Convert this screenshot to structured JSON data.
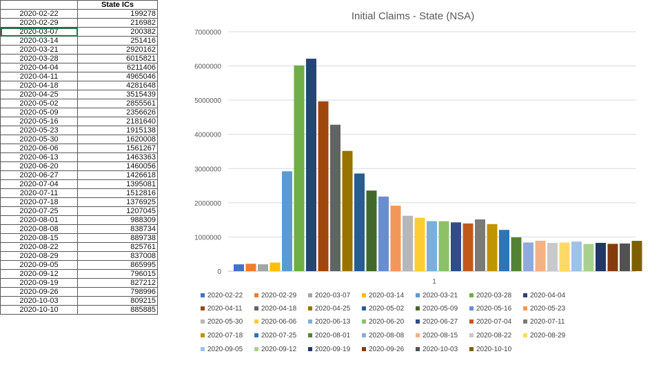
{
  "table": {
    "header": [
      "",
      "State ICs"
    ],
    "rows": [
      [
        "2020-02-22",
        "199278"
      ],
      [
        "2020-02-29",
        "216982"
      ],
      [
        "2020-03-07",
        "200382"
      ],
      [
        "2020-03-14",
        "251416"
      ],
      [
        "2020-03-21",
        "2920162"
      ],
      [
        "2020-03-28",
        "6015821"
      ],
      [
        "2020-04-04",
        "6211406"
      ],
      [
        "2020-04-11",
        "4965046"
      ],
      [
        "2020-04-18",
        "4281648"
      ],
      [
        "2020-04-25",
        "3515439"
      ],
      [
        "2020-05-02",
        "2855561"
      ],
      [
        "2020-05-09",
        "2356626"
      ],
      [
        "2020-05-16",
        "2181640"
      ],
      [
        "2020-05-23",
        "1915138"
      ],
      [
        "2020-05-30",
        "1620008"
      ],
      [
        "2020-06-06",
        "1561267"
      ],
      [
        "2020-06-13",
        "1463363"
      ],
      [
        "2020-06-20",
        "1460056"
      ],
      [
        "2020-06-27",
        "1426618"
      ],
      [
        "2020-07-04",
        "1395081"
      ],
      [
        "2020-07-11",
        "1512816"
      ],
      [
        "2020-07-18",
        "1376925"
      ],
      [
        "2020-07-25",
        "1207045"
      ],
      [
        "2020-08-01",
        "988309"
      ],
      [
        "2020-08-08",
        "838734"
      ],
      [
        "2020-08-15",
        "889738"
      ],
      [
        "2020-08-22",
        "825761"
      ],
      [
        "2020-08-29",
        "837008"
      ],
      [
        "2020-09-05",
        "865995"
      ],
      [
        "2020-09-12",
        "796015"
      ],
      [
        "2020-09-19",
        "827212"
      ],
      [
        "2020-09-26",
        "798996"
      ],
      [
        "2020-10-03",
        "809215"
      ],
      [
        "2020-10-10",
        "885885"
      ]
    ],
    "selected_row": 2
  },
  "chart_data": {
    "type": "bar",
    "title": "Initial Claims - State (NSA)",
    "categories": [
      "1"
    ],
    "ylim": [
      0,
      7000000
    ],
    "yticks": [
      0,
      1000000,
      2000000,
      3000000,
      4000000,
      5000000,
      6000000,
      7000000
    ],
    "ytick_labels": [
      "0",
      "1000000",
      "2000000",
      "3000000",
      "4000000",
      "5000000",
      "6000000",
      "7000000"
    ],
    "grid": true,
    "legend_position": "bottom",
    "series": [
      {
        "name": "2020-02-22",
        "value": 199278,
        "color": "#4472C4"
      },
      {
        "name": "2020-02-29",
        "value": 216982,
        "color": "#ED7D31"
      },
      {
        "name": "2020-03-07",
        "value": 200382,
        "color": "#A5A5A5"
      },
      {
        "name": "2020-03-14",
        "value": 251416,
        "color": "#FFC000"
      },
      {
        "name": "2020-03-21",
        "value": 2920162,
        "color": "#5B9BD5"
      },
      {
        "name": "2020-03-28",
        "value": 6015821,
        "color": "#70AD47"
      },
      {
        "name": "2020-04-04",
        "value": 6211406,
        "color": "#264478"
      },
      {
        "name": "2020-04-11",
        "value": 4965046,
        "color": "#9E480E"
      },
      {
        "name": "2020-04-18",
        "value": 4281648,
        "color": "#636363"
      },
      {
        "name": "2020-04-25",
        "value": 3515439,
        "color": "#997300"
      },
      {
        "name": "2020-05-02",
        "value": 2855561,
        "color": "#255E91"
      },
      {
        "name": "2020-05-09",
        "value": 2356626,
        "color": "#43682B"
      },
      {
        "name": "2020-05-16",
        "value": 2181640,
        "color": "#698ED0"
      },
      {
        "name": "2020-05-23",
        "value": 1915138,
        "color": "#F1975A"
      },
      {
        "name": "2020-05-30",
        "value": 1620008,
        "color": "#B7B7B7"
      },
      {
        "name": "2020-06-06",
        "value": 1561267,
        "color": "#FFCD33"
      },
      {
        "name": "2020-06-13",
        "value": 1463363,
        "color": "#7CAFDD"
      },
      {
        "name": "2020-06-20",
        "value": 1460056,
        "color": "#8CC168"
      },
      {
        "name": "2020-06-27",
        "value": 1426618,
        "color": "#2E4D8A"
      },
      {
        "name": "2020-07-04",
        "value": 1395081,
        "color": "#C05A1C"
      },
      {
        "name": "2020-07-11",
        "value": 1512816,
        "color": "#7A7A7A"
      },
      {
        "name": "2020-07-18",
        "value": 1376925,
        "color": "#C09300"
      },
      {
        "name": "2020-07-25",
        "value": 1207045,
        "color": "#2E75B6"
      },
      {
        "name": "2020-08-01",
        "value": 988309,
        "color": "#548235"
      },
      {
        "name": "2020-08-08",
        "value": 838734,
        "color": "#8FAADC"
      },
      {
        "name": "2020-08-15",
        "value": 889738,
        "color": "#F4B183"
      },
      {
        "name": "2020-08-22",
        "value": 825761,
        "color": "#C9C9C9"
      },
      {
        "name": "2020-08-29",
        "value": 837008,
        "color": "#FFD966"
      },
      {
        "name": "2020-09-05",
        "value": 865995,
        "color": "#9DC3E6"
      },
      {
        "name": "2020-09-12",
        "value": 796015,
        "color": "#A9D18E"
      },
      {
        "name": "2020-09-19",
        "value": 827212,
        "color": "#1F3864"
      },
      {
        "name": "2020-09-26",
        "value": 798996,
        "color": "#843C0C"
      },
      {
        "name": "2020-10-03",
        "value": 809215,
        "color": "#525252"
      },
      {
        "name": "2020-10-10",
        "value": 885885,
        "color": "#7F6000"
      }
    ]
  }
}
